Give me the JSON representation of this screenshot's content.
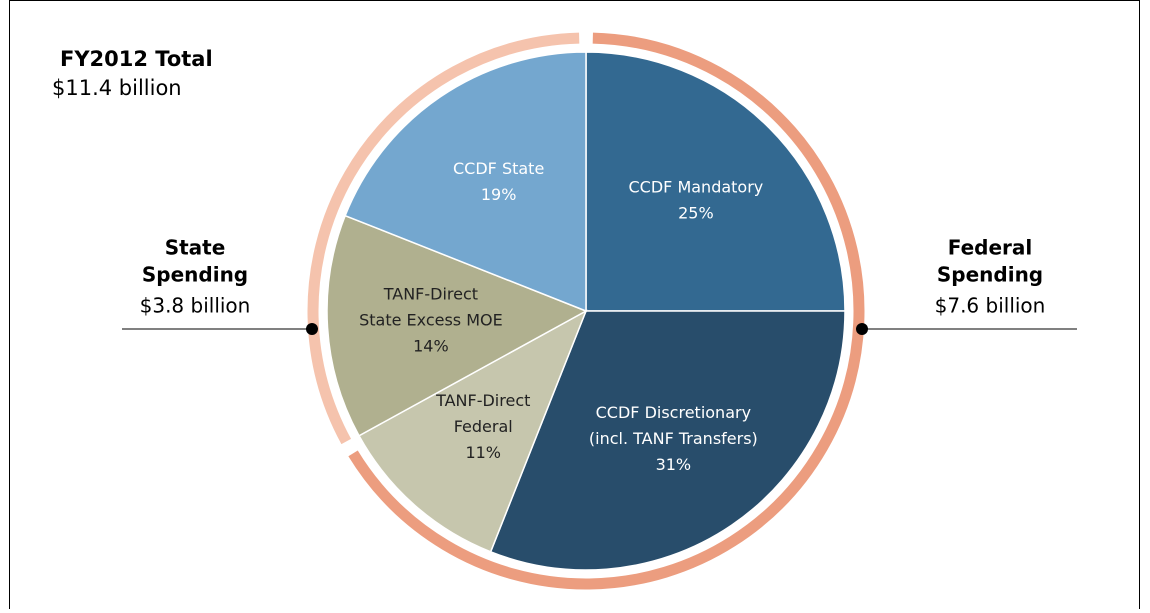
{
  "chart_data": {
    "type": "pie",
    "title": "FY2012 Total",
    "subtitle": "$11.4 billion",
    "categories": [
      [
        "CCDF Mandatory"
      ],
      [
        "CCDF Discretionary",
        "(incl. TANF Transfers)"
      ],
      [
        "TANF-Direct",
        "Federal"
      ],
      [
        "TANF-Direct",
        "State Excess  MOE"
      ],
      [
        "CCDF State"
      ]
    ],
    "values": [
      25,
      31,
      11,
      14,
      19
    ],
    "value_labels": [
      "25%",
      "31%",
      "11%",
      "14%",
      "19%"
    ],
    "colors": [
      "#336991",
      "#284d6b",
      "#c6c6ad",
      "#b0b08f",
      "#74a7cf"
    ],
    "label_colors": [
      "#ffffff",
      "#ffffff",
      "#222222",
      "#222222",
      "#ffffff"
    ],
    "groups": [
      {
        "name": [
          "Federal",
          "Spending"
        ],
        "value": 7.6,
        "value_label": "$7.6 billion",
        "color": "#ec9d7f"
      },
      {
        "name": [
          "State",
          "Spending"
        ],
        "value": 3.8,
        "value_label": "$3.8 billion",
        "color": "#f5c3ad"
      }
    ]
  }
}
